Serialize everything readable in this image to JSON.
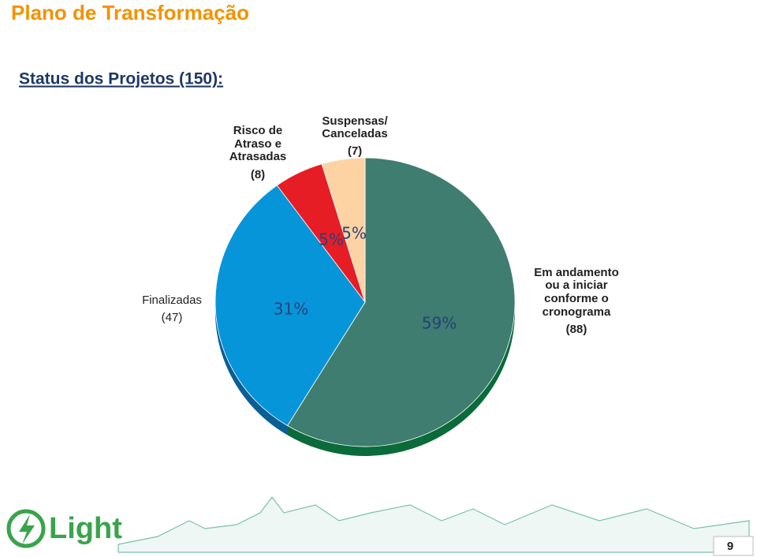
{
  "header": {
    "title": "Plano de Transformação",
    "subtitle": "Status dos Projetos (150):"
  },
  "chart_data": {
    "type": "pie",
    "categories": [
      [
        "Em andamento",
        "ou a iniciar",
        "conforme o",
        "cronograma"
      ],
      [
        "Finalizadas"
      ],
      [
        "Risco de",
        "Atraso e",
        "Atrasadas"
      ],
      [
        "Suspensas/",
        "Canceladas"
      ]
    ],
    "values": [
      88,
      47,
      8,
      7
    ],
    "value_labels": [
      "(88)",
      "(47)",
      "(8)",
      "(7)"
    ],
    "percent_labels": [
      "59%",
      "31%",
      "5%",
      "5%"
    ],
    "colors": [
      "#3e7d70",
      "#0795d9",
      "#e71d26",
      "#fdd3a4"
    ],
    "side_colors": [
      "#0b6b3a",
      "#0a5f94",
      "#9d1016",
      "#c79c6e"
    ]
  },
  "footer": {
    "logo": "Light",
    "page": "9"
  }
}
